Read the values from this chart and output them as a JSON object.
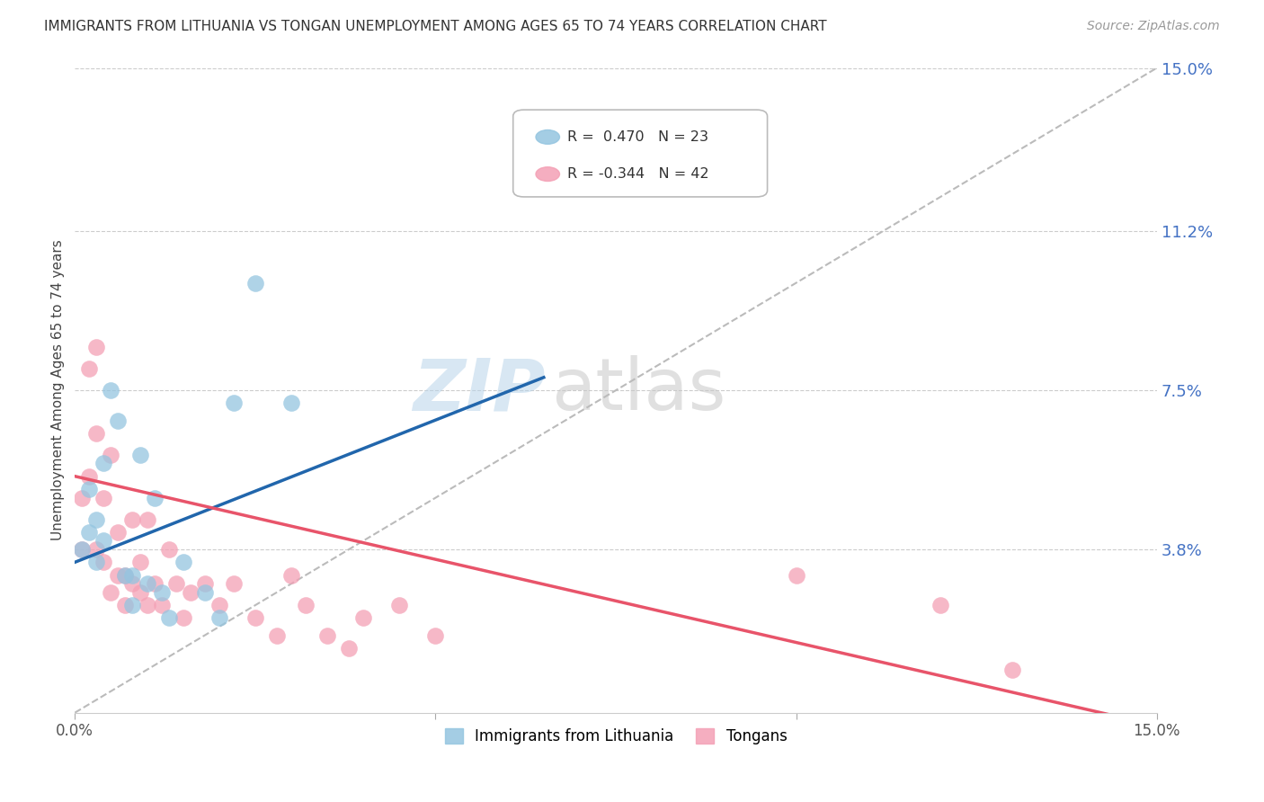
{
  "title": "IMMIGRANTS FROM LITHUANIA VS TONGAN UNEMPLOYMENT AMONG AGES 65 TO 74 YEARS CORRELATION CHART",
  "source": "Source: ZipAtlas.com",
  "ylabel": "Unemployment Among Ages 65 to 74 years",
  "xlim": [
    0.0,
    0.15
  ],
  "ylim": [
    0.0,
    0.15
  ],
  "ytick_values": [
    0.0,
    0.038,
    0.075,
    0.112,
    0.15
  ],
  "legend_label1": "Immigrants from Lithuania",
  "legend_label2": "Tongans",
  "R1": 0.47,
  "N1": 23,
  "R2": -0.344,
  "N2": 42,
  "color1": "#94c5e0",
  "color2": "#f4a0b5",
  "trendline1_color": "#2166ac",
  "trendline2_color": "#e8546a",
  "trendline_dashed_color": "#bbbbbb",
  "watermark_zip": "ZIP",
  "watermark_atlas": "atlas",
  "scatter1_x": [
    0.001,
    0.002,
    0.002,
    0.003,
    0.003,
    0.004,
    0.004,
    0.005,
    0.006,
    0.007,
    0.008,
    0.008,
    0.009,
    0.01,
    0.011,
    0.012,
    0.013,
    0.015,
    0.018,
    0.02,
    0.022,
    0.025,
    0.03
  ],
  "scatter1_y": [
    0.038,
    0.042,
    0.052,
    0.035,
    0.045,
    0.04,
    0.058,
    0.075,
    0.068,
    0.032,
    0.032,
    0.025,
    0.06,
    0.03,
    0.05,
    0.028,
    0.022,
    0.035,
    0.028,
    0.022,
    0.072,
    0.1,
    0.072
  ],
  "scatter2_x": [
    0.001,
    0.001,
    0.002,
    0.002,
    0.003,
    0.003,
    0.003,
    0.004,
    0.004,
    0.005,
    0.005,
    0.006,
    0.006,
    0.007,
    0.007,
    0.008,
    0.008,
    0.009,
    0.009,
    0.01,
    0.01,
    0.011,
    0.012,
    0.013,
    0.014,
    0.015,
    0.016,
    0.018,
    0.02,
    0.022,
    0.025,
    0.028,
    0.03,
    0.032,
    0.035,
    0.038,
    0.04,
    0.045,
    0.05,
    0.1,
    0.12,
    0.13
  ],
  "scatter2_y": [
    0.05,
    0.038,
    0.08,
    0.055,
    0.085,
    0.065,
    0.038,
    0.05,
    0.035,
    0.06,
    0.028,
    0.042,
    0.032,
    0.032,
    0.025,
    0.045,
    0.03,
    0.028,
    0.035,
    0.045,
    0.025,
    0.03,
    0.025,
    0.038,
    0.03,
    0.022,
    0.028,
    0.03,
    0.025,
    0.03,
    0.022,
    0.018,
    0.032,
    0.025,
    0.018,
    0.015,
    0.022,
    0.025,
    0.018,
    0.032,
    0.025,
    0.01
  ],
  "trendline1_x0": 0.0,
  "trendline1_y0": 0.035,
  "trendline1_x1": 0.065,
  "trendline1_y1": 0.078,
  "trendline2_x0": 0.0,
  "trendline2_y0": 0.055,
  "trendline2_x1": 0.15,
  "trendline2_y1": -0.003
}
